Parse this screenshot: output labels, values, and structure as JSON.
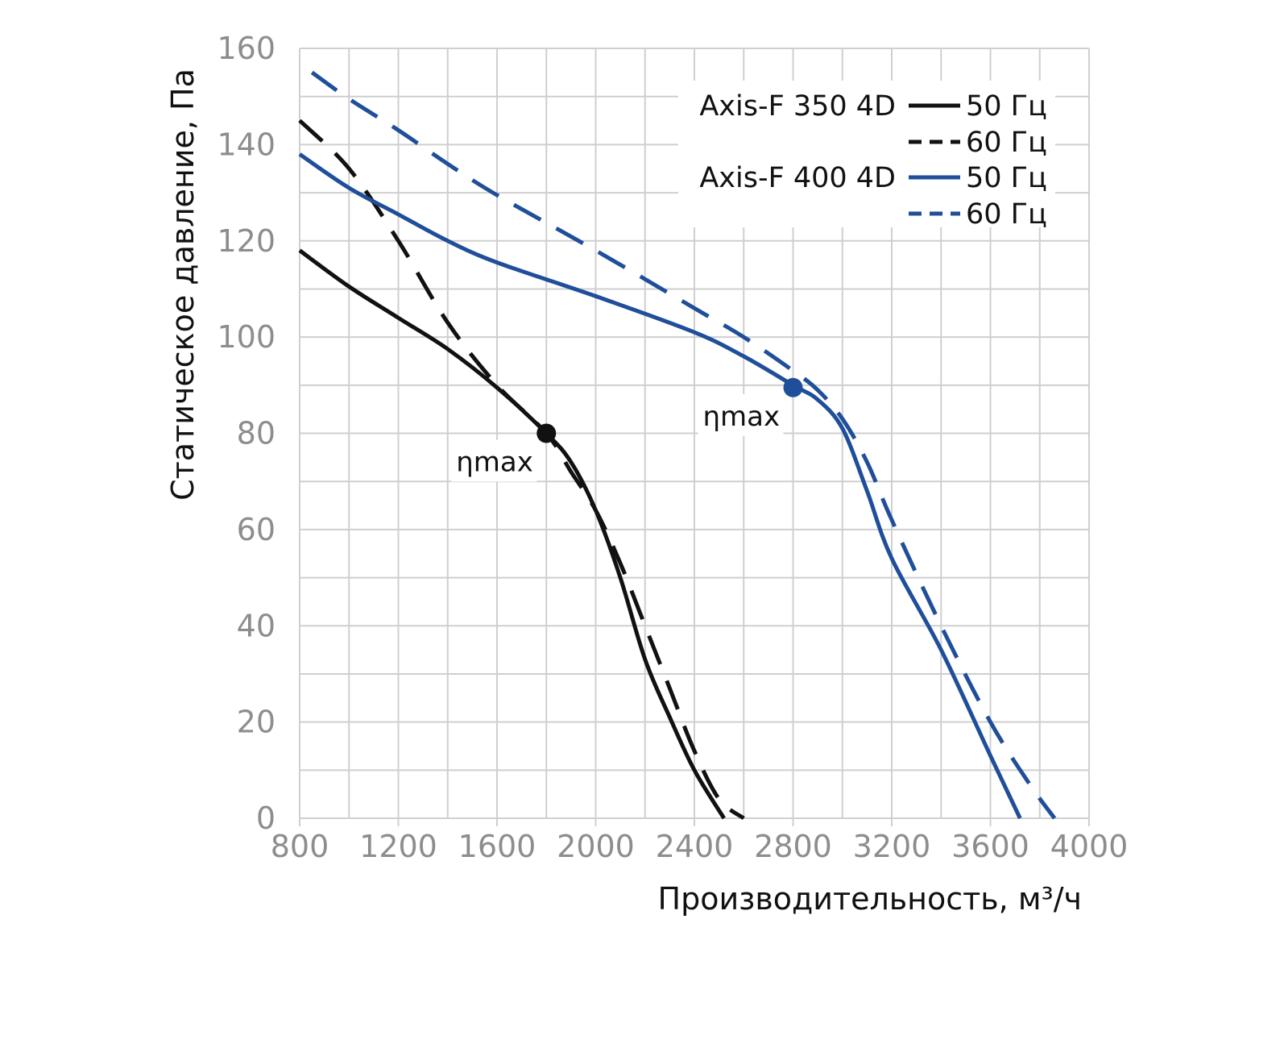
{
  "chart_data": {
    "type": "line",
    "xlabel": "Производительность, м³/ч",
    "ylabel": "Статическое давление, Па",
    "xlim": [
      800,
      4000
    ],
    "ylim": [
      0,
      160
    ],
    "x_ticks": [
      800,
      1200,
      1600,
      2000,
      2400,
      2800,
      3200,
      3600,
      4000
    ],
    "y_ticks": [
      0,
      20,
      40,
      60,
      80,
      100,
      120,
      140,
      160
    ],
    "x_tick_labels": [
      "800",
      "1200",
      "1600",
      "2000",
      "2400",
      "2800",
      "3200",
      "3600",
      "4000"
    ],
    "y_tick_labels": [
      "0",
      "20",
      "40",
      "60",
      "80",
      "100",
      "120",
      "140",
      "160"
    ],
    "grid": true,
    "legend_position": "top-right",
    "colors": {
      "black": "#111111",
      "blue": "#1f4e9a",
      "grid": "#cfcfcf",
      "tick": "#8d8d8d"
    },
    "legend": {
      "groups": [
        {
          "model": "Axis-F 350 4D",
          "entries": [
            {
              "label": "50 Гц",
              "color": "#111111",
              "dash": "solid"
            },
            {
              "label": "60 Гц",
              "color": "#111111",
              "dash": "dashed"
            }
          ]
        },
        {
          "model": "Axis-F 400 4D",
          "entries": [
            {
              "label": "50 Гц",
              "color": "#1f4e9a",
              "dash": "solid"
            },
            {
              "label": "60 Гц",
              "color": "#1f4e9a",
              "dash": "dashed"
            }
          ]
        }
      ]
    },
    "series": [
      {
        "model": "Axis-F 350 4D",
        "frequency": "50 Гц",
        "color": "#111111",
        "dash": "solid",
        "points": [
          [
            800,
            118
          ],
          [
            1000,
            110.5
          ],
          [
            1200,
            104
          ],
          [
            1400,
            97.5
          ],
          [
            1600,
            89.5
          ],
          [
            1800,
            80
          ],
          [
            1900,
            74
          ],
          [
            2000,
            64
          ],
          [
            2100,
            50
          ],
          [
            2200,
            33
          ],
          [
            2300,
            21
          ],
          [
            2400,
            10
          ],
          [
            2520,
            0
          ]
        ]
      },
      {
        "model": "Axis-F 350 4D",
        "frequency": "60 Гц",
        "color": "#111111",
        "dash": "dashed",
        "points": [
          [
            800,
            145
          ],
          [
            1000,
            135
          ],
          [
            1200,
            120
          ],
          [
            1400,
            103
          ],
          [
            1600,
            90
          ],
          [
            1800,
            80
          ],
          [
            1900,
            72
          ],
          [
            2000,
            64
          ],
          [
            2100,
            53
          ],
          [
            2200,
            40
          ],
          [
            2300,
            27
          ],
          [
            2400,
            14
          ],
          [
            2500,
            4
          ],
          [
            2600,
            0
          ]
        ]
      },
      {
        "model": "Axis-F 400 4D",
        "frequency": "50 Гц",
        "color": "#1f4e9a",
        "dash": "solid",
        "points": [
          [
            800,
            138
          ],
          [
            1000,
            131
          ],
          [
            1200,
            125.5
          ],
          [
            1400,
            120
          ],
          [
            1600,
            115.5
          ],
          [
            2000,
            108.5
          ],
          [
            2400,
            101
          ],
          [
            2600,
            96
          ],
          [
            2800,
            90
          ],
          [
            2900,
            87
          ],
          [
            3000,
            81
          ],
          [
            3100,
            68
          ],
          [
            3200,
            54
          ],
          [
            3400,
            35
          ],
          [
            3600,
            13
          ],
          [
            3720,
            0
          ]
        ]
      },
      {
        "model": "Axis-F 400 4D",
        "frequency": "60 Гц",
        "color": "#1f4e9a",
        "dash": "dashed",
        "points": [
          [
            850,
            155
          ],
          [
            1000,
            149.5
          ],
          [
            1200,
            143
          ],
          [
            1400,
            136
          ],
          [
            1600,
            129.5
          ],
          [
            2000,
            118
          ],
          [
            2400,
            106
          ],
          [
            2600,
            100
          ],
          [
            2800,
            93
          ],
          [
            2900,
            89
          ],
          [
            3000,
            83
          ],
          [
            3100,
            74
          ],
          [
            3200,
            62
          ],
          [
            3400,
            40
          ],
          [
            3600,
            20
          ],
          [
            3760,
            7
          ],
          [
            3860,
            0
          ]
        ]
      }
    ],
    "annotations": [
      {
        "text": "ηmax",
        "x": 1800,
        "y": 80,
        "color": "#111111",
        "side": "below-left"
      },
      {
        "text": "ηmax",
        "x": 2800,
        "y": 89.5,
        "color": "#1f4e9a",
        "side": "below-left"
      }
    ]
  }
}
